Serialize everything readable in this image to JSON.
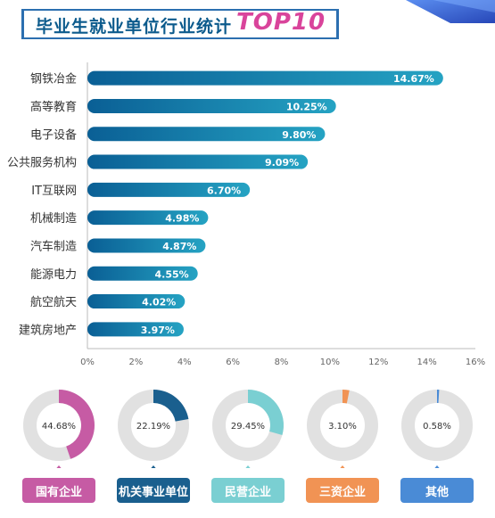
{
  "header": {
    "title": "毕业生就业单位行业统计",
    "accent": "TOP10"
  },
  "chart_data": [
    {
      "type": "bar",
      "orientation": "horizontal",
      "categories": [
        "钢铁冶金",
        "高等教育",
        "电子设备",
        "公共服务机构",
        "IT互联网",
        "机械制造",
        "汽车制造",
        "能源电力",
        "航空航天",
        "建筑房地产"
      ],
      "values": [
        14.67,
        10.25,
        9.8,
        9.09,
        6.7,
        4.98,
        4.87,
        4.55,
        4.02,
        3.97
      ],
      "value_labels": [
        "14.67%",
        "10.25%",
        "9.80%",
        "9.09%",
        "6.70%",
        "4.98%",
        "4.87%",
        "4.55%",
        "4.02%",
        "3.97%"
      ],
      "x_ticks": [
        "0%",
        "2%",
        "4%",
        "6%",
        "8%",
        "10%",
        "12%",
        "14%",
        "16%"
      ],
      "xlim": [
        0,
        16
      ],
      "bar_colors": [
        "#0a5f95",
        "#25a3c3"
      ]
    },
    {
      "type": "pie",
      "style": "donut",
      "labels": [
        "国有企业",
        "机关事业单位",
        "民营企业",
        "三资企业",
        "其他"
      ],
      "values": [
        44.68,
        22.19,
        29.45,
        3.1,
        0.58
      ],
      "value_labels": [
        "44.68%",
        "22.19%",
        "29.45%",
        "3.10%",
        "0.58%"
      ],
      "colors": [
        "#c65ba4",
        "#1a5f8e",
        "#7acfd2",
        "#f19354",
        "#4a8bd6"
      ],
      "track_color": "#e1e1e1"
    }
  ]
}
